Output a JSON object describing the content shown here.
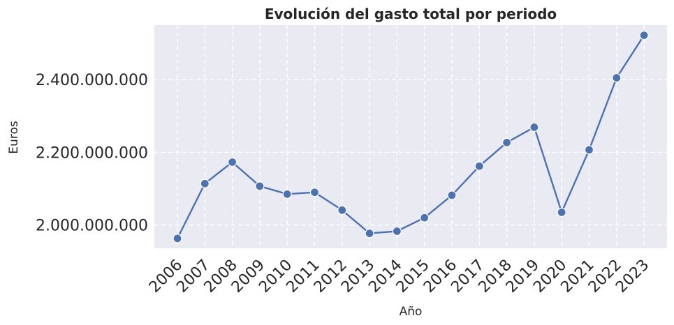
{
  "chart_data": {
    "type": "line",
    "title": "Evolución del gasto total por periodo",
    "xlabel": "Año",
    "ylabel": "Euros",
    "x": [
      "2006",
      "2007",
      "2008",
      "2009",
      "2010",
      "2011",
      "2012",
      "2013",
      "2014",
      "2015",
      "2016",
      "2017",
      "2018",
      "2019",
      "2020",
      "2021",
      "2022",
      "2023"
    ],
    "series": [
      {
        "values": [
          1963000000,
          2114000000,
          2173000000,
          2107000000,
          2085000000,
          2090000000,
          2041000000,
          1977000000,
          1983000000,
          2020000000,
          2082000000,
          2162000000,
          2227000000,
          2269000000,
          2035000000,
          2207000000,
          2405000000,
          2522000000
        ]
      }
    ],
    "yticks": [
      2000000000,
      2200000000,
      2400000000
    ],
    "ytick_labels": [
      "2.000.000.000",
      "2.200.000.000",
      "2.400.000.000"
    ],
    "ylim": [
      1936000000,
      2550000000
    ],
    "grid": true,
    "colors": {
      "line": "#4c72b0",
      "background": "#eaeaf2",
      "grid": "#ffffff"
    }
  }
}
